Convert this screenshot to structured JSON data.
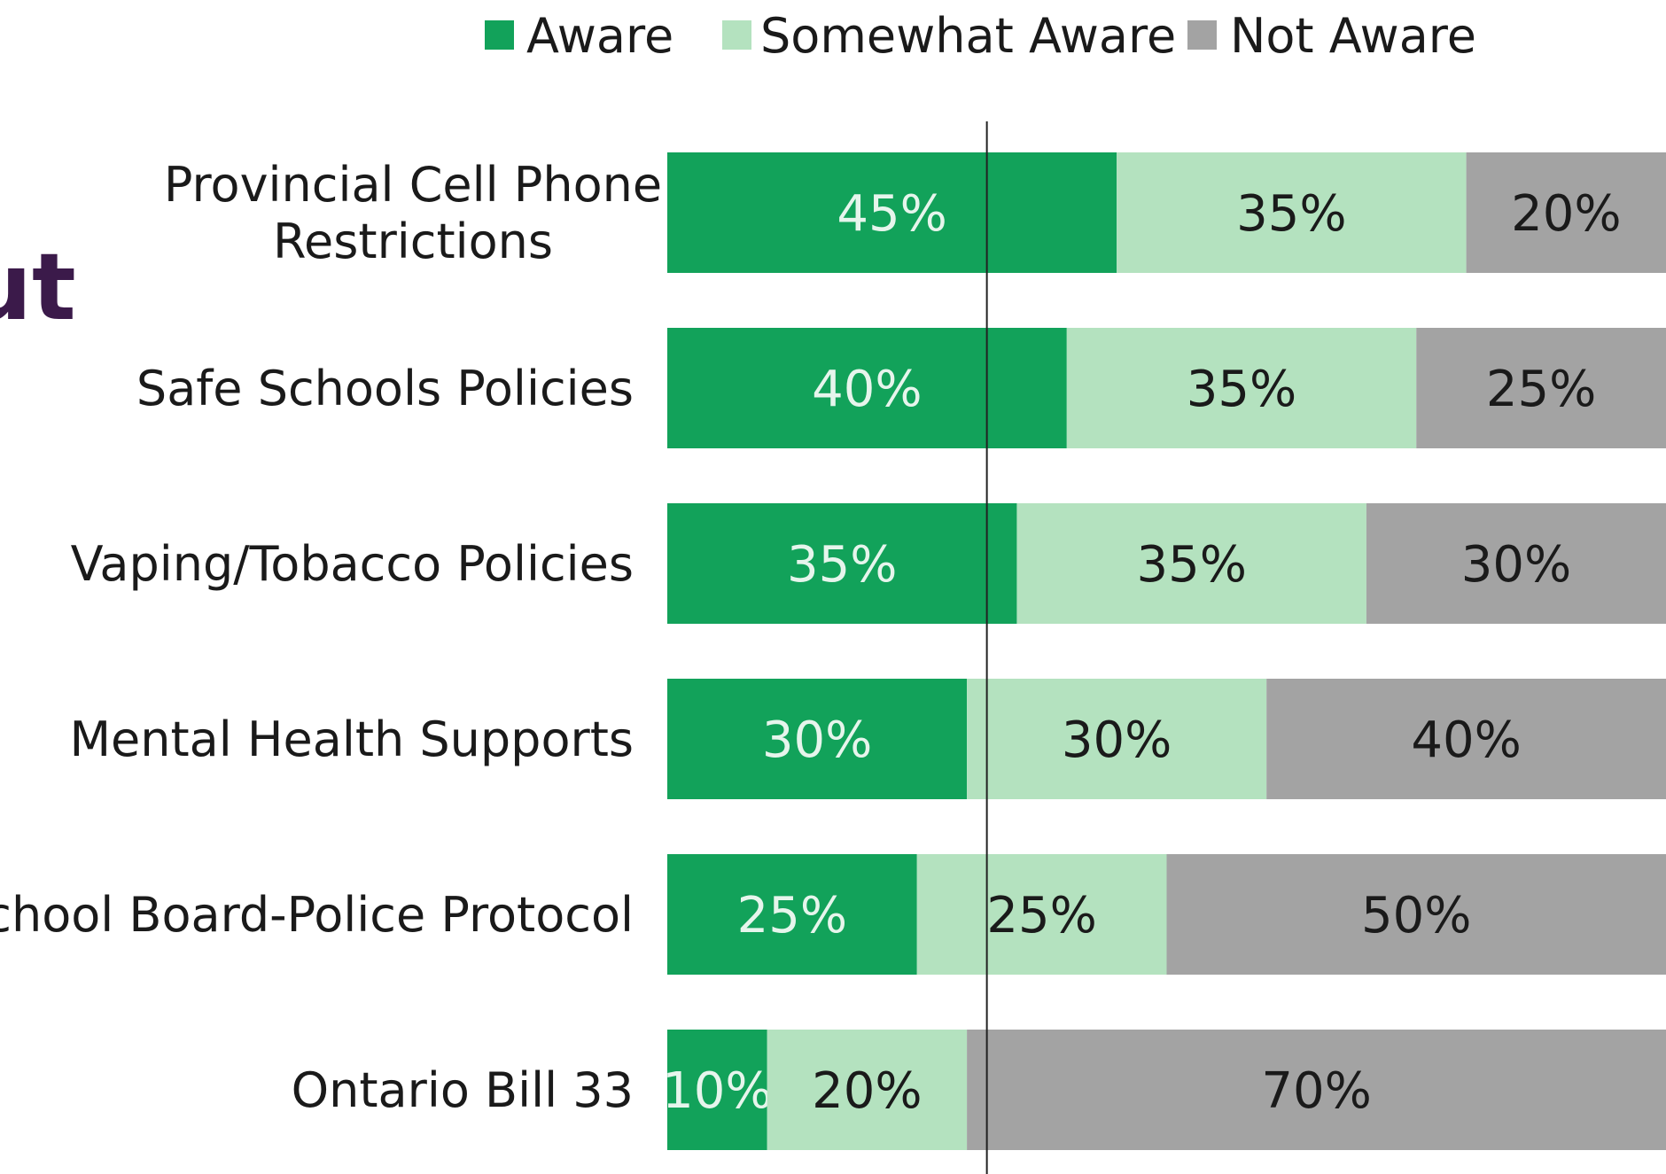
{
  "page": {
    "partial_title": "ut",
    "partial_title_color": "#3b1a4a"
  },
  "chart_data": {
    "type": "bar",
    "orientation": "horizontal",
    "stacked": true,
    "categories": [
      [
        "Provincial Cell Phone",
        "Restrictions"
      ],
      [
        "Safe Schools Policies"
      ],
      [
        "Vaping/Tobacco Policies"
      ],
      [
        "Mental Health Supports"
      ],
      [
        "School Board-Police Protocol"
      ],
      [
        "Ontario Bill 33"
      ]
    ],
    "series": [
      {
        "name": "Aware",
        "color": "#12a25a",
        "label_color": "#e6f5ec",
        "values": [
          45,
          40,
          35,
          30,
          25,
          10
        ],
        "labels": [
          "45%",
          "40%",
          "35%",
          "30%",
          "25%",
          "10%"
        ]
      },
      {
        "name": "Somewhat Aware",
        "color": "#b4e2bf",
        "label_color": "#1a1a1a",
        "values": [
          35,
          35,
          35,
          30,
          25,
          20
        ],
        "labels": [
          "35%",
          "35%",
          "35%",
          "30%",
          "25%",
          "20%"
        ]
      },
      {
        "name": "Not Aware",
        "color": "#a3a3a3",
        "label_color": "#1a1a1a",
        "values": [
          20,
          25,
          30,
          40,
          50,
          70
        ],
        "labels": [
          "20%",
          "25%",
          "30%",
          "40%",
          "50%",
          "70%"
        ]
      }
    ],
    "xlim": [
      0,
      100
    ],
    "reference_line": 32,
    "reference_line_color": "#222222",
    "legend_position": "top",
    "grid": false
  }
}
